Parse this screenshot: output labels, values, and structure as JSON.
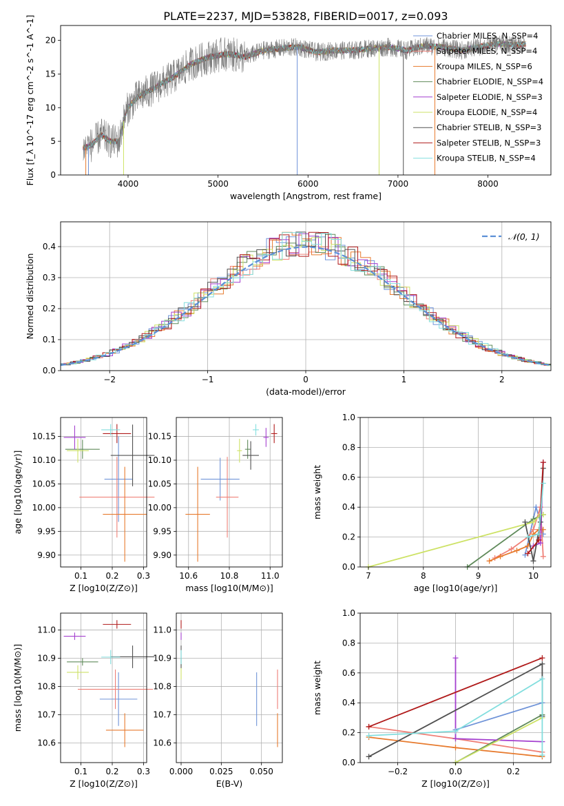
{
  "figure_title": "PLATE=2237, MJD=53828, FIBERID=0017, z=0.093",
  "colors": {
    "chabrier_miles": "#6f93d8",
    "salpeter_miles": "#ef7f76",
    "kroupa_miles": "#e77a2d",
    "chabrier_elodie": "#5f8a5a",
    "salpeter_elodie": "#a43fcf",
    "kroupa_elodie": "#cde265",
    "chabrier_stelib": "#505050",
    "salpeter_stelib": "#b01a1a",
    "kroupa_stelib": "#82dede",
    "normal": "#5b8fd6"
  },
  "chart_data": [
    {
      "id": "spectrum",
      "type": "line",
      "title": "PLATE=2237, MJD=53828, FIBERID=0017, z=0.093",
      "xlabel": "wavelength [Angstrom, rest frame]",
      "ylabel": "Flux [f_λ 10^-17 erg cm^-2 s^-1 A^-1]",
      "xlim": [
        3250,
        8700
      ],
      "ylim": [
        0,
        22.2
      ],
      "xticks": [
        "4000",
        "5000",
        "6000",
        "7000",
        "8000"
      ],
      "yticks": [
        "0",
        "5",
        "10",
        "15",
        "20"
      ],
      "grid": false,
      "legend_position": "upper-right",
      "legend": [
        {
          "label": "Chabrier MILES, N_SSP=4",
          "color": "#6f93d8"
        },
        {
          "label": "Salpeter MILES, N_SSP=4",
          "color": "#ef7f76"
        },
        {
          "label": "Kroupa MILES, N_SSP=6",
          "color": "#e77a2d"
        },
        {
          "label": "Chabrier ELODIE, N_SSP=4",
          "color": "#5f8a5a"
        },
        {
          "label": "Salpeter ELODIE, N_SSP=3",
          "color": "#a43fcf"
        },
        {
          "label": "Kroupa ELODIE, N_SSP=4",
          "color": "#cde265"
        },
        {
          "label": "Chabrier STELIB, N_SSP=3",
          "color": "#505050"
        },
        {
          "label": "Salpeter STELIB, N_SSP=3",
          "color": "#b01a1a"
        },
        {
          "label": "Kroupa STELIB, N_SSP=4",
          "color": "#82dede"
        }
      ],
      "continuum": [
        [
          3520,
          4
        ],
        [
          3600,
          4.5
        ],
        [
          3700,
          6
        ],
        [
          3800,
          5
        ],
        [
          3900,
          5
        ],
        [
          3950,
          8
        ],
        [
          4000,
          10
        ],
        [
          4100,
          11.5
        ],
        [
          4300,
          13
        ],
        [
          4500,
          14.5
        ],
        [
          4700,
          16.5
        ],
        [
          4900,
          17.5
        ],
        [
          5100,
          18
        ],
        [
          5300,
          17.5
        ],
        [
          5500,
          18.5
        ],
        [
          5700,
          18.8
        ],
        [
          5900,
          19
        ],
        [
          6100,
          18.2
        ],
        [
          6300,
          18.5
        ],
        [
          6500,
          18.5
        ],
        [
          6700,
          18.8
        ],
        [
          6900,
          19
        ],
        [
          7100,
          18.5
        ],
        [
          7300,
          19.2
        ],
        [
          7500,
          19
        ],
        [
          7700,
          18.5
        ],
        [
          7900,
          19
        ],
        [
          8100,
          19.5
        ],
        [
          8300,
          19.3
        ],
        [
          8420,
          19.5
        ]
      ],
      "noise_amplitude": 2.0,
      "spectrum_range": [
        3500,
        8420
      ]
    },
    {
      "id": "residuals",
      "type": "histogram",
      "xlabel": "(data-model)/error",
      "ylabel": "Normed distribution",
      "xlim": [
        -2.5,
        2.5
      ],
      "ylim": [
        0,
        0.48
      ],
      "xticks": [
        "−2",
        "−1",
        "0",
        "1",
        "2"
      ],
      "yticks": [
        "0.0",
        "0.1",
        "0.2",
        "0.3",
        "0.4"
      ],
      "grid": true,
      "legend_position": "upper-right",
      "legend": [
        {
          "label": "𝒩(0, 1)",
          "style": "dashed",
          "color": "#5b8fd6"
        }
      ],
      "bin_width": 0.1,
      "curve": "normal(0,1)",
      "series_colors": [
        "#6f93d8",
        "#ef7f76",
        "#e77a2d",
        "#5f8a5a",
        "#a43fcf",
        "#cde265",
        "#505050",
        "#b01a1a",
        "#82dede"
      ]
    },
    {
      "id": "age_vs_Z",
      "type": "errorbar",
      "xlabel": "Z [log10(Z/Z⊙)]",
      "ylabel": "age [log10(age/yr)]",
      "xlim": [
        0.035,
        0.31
      ],
      "ylim": [
        9.875,
        10.19
      ],
      "xticks": [
        "0.1",
        "0.2",
        "0.3"
      ],
      "yticks": [
        "9.90",
        "9.95",
        "10.00",
        "10.05",
        "10.10",
        "10.15"
      ],
      "grid": true,
      "points": [
        {
          "x": 0.22,
          "xerr": 0.045,
          "y": 10.06,
          "yerr": 0.09,
          "color": "#6f93d8"
        },
        {
          "x": 0.215,
          "xerr": 0.12,
          "y": 10.022,
          "yerr": 0.085,
          "color": "#ef7f76"
        },
        {
          "x": 0.24,
          "xerr": 0.07,
          "y": 9.986,
          "yerr": 0.1,
          "color": "#e77a2d"
        },
        {
          "x": 0.105,
          "xerr": 0.055,
          "y": 10.123,
          "yerr": 0.02,
          "color": "#5f8a5a"
        },
        {
          "x": 0.08,
          "xerr": 0.035,
          "y": 10.148,
          "yerr": 0.025,
          "color": "#a43fcf"
        },
        {
          "x": 0.09,
          "xerr": 0.035,
          "y": 10.12,
          "yerr": 0.025,
          "color": "#cde265"
        },
        {
          "x": 0.265,
          "xerr": 0.07,
          "y": 10.11,
          "yerr": 0.065,
          "color": "#505050"
        },
        {
          "x": 0.215,
          "xerr": 0.045,
          "y": 10.156,
          "yerr": 0.02,
          "color": "#b01a1a"
        },
        {
          "x": 0.195,
          "xerr": 0.03,
          "y": 10.164,
          "yerr": 0.012,
          "color": "#82dede"
        }
      ]
    },
    {
      "id": "age_vs_mass",
      "type": "errorbar",
      "xlabel": "mass [log10(M/M⊙)]",
      "ylabel": "",
      "xlim": [
        10.54,
        11.06
      ],
      "ylim": [
        9.875,
        10.19
      ],
      "xticks": [
        "10.6",
        "10.8",
        "11.0"
      ],
      "yticks": [
        "9.90",
        "9.95",
        "10.00",
        "10.05",
        "10.10",
        "10.15"
      ],
      "grid": true,
      "points": [
        {
          "x": 10.755,
          "xerr": 0.095,
          "y": 10.06,
          "yerr": 0.045,
          "color": "#6f93d8"
        },
        {
          "x": 10.79,
          "xerr": 0.055,
          "y": 10.022,
          "yerr": 0.085,
          "color": "#ef7f76"
        },
        {
          "x": 10.645,
          "xerr": 0.06,
          "y": 9.986,
          "yerr": 0.1,
          "color": "#e77a2d"
        },
        {
          "x": 10.89,
          "xerr": 0.013,
          "y": 10.123,
          "yerr": 0.02,
          "color": "#5f8a5a"
        },
        {
          "x": 10.98,
          "xerr": 0.013,
          "y": 10.148,
          "yerr": 0.02,
          "color": "#a43fcf"
        },
        {
          "x": 10.85,
          "xerr": 0.012,
          "y": 10.12,
          "yerr": 0.025,
          "color": "#cde265"
        },
        {
          "x": 10.905,
          "xerr": 0.04,
          "y": 10.11,
          "yerr": 0.03,
          "color": "#505050"
        },
        {
          "x": 11.02,
          "xerr": 0.015,
          "y": 10.156,
          "yerr": 0.02,
          "color": "#b01a1a"
        },
        {
          "x": 10.93,
          "xerr": 0.015,
          "y": 10.164,
          "yerr": 0.012,
          "color": "#82dede"
        }
      ]
    },
    {
      "id": "mass_weight_vs_age",
      "type": "line",
      "xlabel": "age [log10(age/yr)]",
      "ylabel": "mass weight",
      "xlim": [
        6.85,
        10.32
      ],
      "ylim": [
        0,
        1.0
      ],
      "xticks": [
        "7",
        "8",
        "9",
        "10"
      ],
      "yticks": [
        "0.0",
        "0.2",
        "0.4",
        "0.6",
        "0.8",
        "1.0"
      ],
      "grid": true,
      "series": [
        {
          "color": "#6f93d8",
          "x": [
            9.85,
            10.05,
            10.13,
            10.18
          ],
          "y": [
            0.08,
            0.4,
            0.3,
            0.22
          ]
        },
        {
          "color": "#ef7f76",
          "x": [
            9.3,
            9.6,
            9.9,
            10.0,
            10.13,
            10.18
          ],
          "y": [
            0.06,
            0.12,
            0.2,
            0.25,
            0.4,
            0.07
          ]
        },
        {
          "color": "#e77a2d",
          "x": [
            9.2,
            9.4,
            9.7,
            9.9,
            10.0,
            10.1,
            10.18
          ],
          "y": [
            0.04,
            0.07,
            0.11,
            0.14,
            0.22,
            0.25,
            0.25
          ]
        },
        {
          "color": "#5f8a5a",
          "x": [
            8.8,
            10.0,
            10.18
          ],
          "y": [
            0.0,
            0.32,
            0.35
          ]
        },
        {
          "color": "#a43fcf",
          "x": [
            10.0,
            10.13,
            10.18
          ],
          "y": [
            0.14,
            0.16,
            0.7
          ]
        },
        {
          "color": "#cde265",
          "x": [
            7.0,
            10.0,
            10.13,
            10.18
          ],
          "y": [
            0.0,
            0.3,
            0.35,
            0.35
          ]
        },
        {
          "color": "#505050",
          "x": [
            9.85,
            10.0,
            10.13,
            10.18
          ],
          "y": [
            0.3,
            0.04,
            0.3,
            0.66
          ]
        },
        {
          "color": "#b01a1a",
          "x": [
            9.9,
            10.1,
            10.18
          ],
          "y": [
            0.09,
            0.18,
            0.7
          ]
        },
        {
          "color": "#82dede",
          "x": [
            9.9,
            10.1,
            10.18
          ],
          "y": [
            0.2,
            0.22,
            0.56
          ]
        }
      ]
    },
    {
      "id": "mass_vs_Z",
      "type": "errorbar",
      "xlabel": "Z [log10(Z/Z⊙)]",
      "ylabel": "mass [log10(M/M⊙)]",
      "xlim": [
        0.035,
        0.31
      ],
      "ylim": [
        10.53,
        11.06
      ],
      "xticks": [
        "0.1",
        "0.2",
        "0.3"
      ],
      "yticks": [
        "10.6",
        "10.7",
        "10.8",
        "10.9",
        "11.0"
      ],
      "grid": true,
      "points": [
        {
          "x": 0.22,
          "xerr": 0.06,
          "y": 10.755,
          "yerr": 0.095,
          "color": "#6f93d8"
        },
        {
          "x": 0.21,
          "xerr": 0.12,
          "y": 10.79,
          "yerr": 0.07,
          "color": "#ef7f76"
        },
        {
          "x": 0.24,
          "xerr": 0.06,
          "y": 10.645,
          "yerr": 0.06,
          "color": "#e77a2d"
        },
        {
          "x": 0.105,
          "xerr": 0.05,
          "y": 10.887,
          "yerr": 0.013,
          "color": "#5f8a5a"
        },
        {
          "x": 0.08,
          "xerr": 0.035,
          "y": 10.978,
          "yerr": 0.013,
          "color": "#a43fcf"
        },
        {
          "x": 0.09,
          "xerr": 0.035,
          "y": 10.85,
          "yerr": 0.025,
          "color": "#cde265"
        },
        {
          "x": 0.265,
          "xerr": 0.07,
          "y": 10.905,
          "yerr": 0.04,
          "color": "#505050"
        },
        {
          "x": 0.215,
          "xerr": 0.045,
          "y": 11.02,
          "yerr": 0.015,
          "color": "#b01a1a"
        },
        {
          "x": 0.195,
          "xerr": 0.03,
          "y": 10.904,
          "yerr": 0.025,
          "color": "#82dede"
        }
      ]
    },
    {
      "id": "mass_vs_ebv",
      "type": "errorbar",
      "xlabel": "E(B-V)",
      "ylabel": "",
      "xlim": [
        -0.003,
        0.063
      ],
      "ylim": [
        10.53,
        11.06
      ],
      "xticks": [
        "0.000",
        "0.025",
        "0.050"
      ],
      "yticks": [
        "10.6",
        "10.7",
        "10.8",
        "10.9",
        "11.0"
      ],
      "grid": true,
      "points": [
        {
          "x": 0.047,
          "xerr": 0,
          "y": 10.755,
          "yerr": 0.095,
          "color": "#6f93d8"
        },
        {
          "x": 0.06,
          "xerr": 0,
          "y": 10.79,
          "yerr": 0.07,
          "color": "#ef7f76"
        },
        {
          "x": 0.06,
          "xerr": 0,
          "y": 10.645,
          "yerr": 0.06,
          "color": "#e77a2d"
        },
        {
          "x": 0.0,
          "xerr": 0,
          "y": 10.887,
          "yerr": 0.013,
          "color": "#5f8a5a"
        },
        {
          "x": 0.0,
          "xerr": 0,
          "y": 10.978,
          "yerr": 0.013,
          "color": "#a43fcf"
        },
        {
          "x": 0.0,
          "xerr": 0,
          "y": 10.85,
          "yerr": 0.025,
          "color": "#cde265"
        },
        {
          "x": 0.0,
          "xerr": 0,
          "y": 10.905,
          "yerr": 0.04,
          "color": "#505050"
        },
        {
          "x": 0.0,
          "xerr": 0,
          "y": 11.02,
          "yerr": 0.015,
          "color": "#b01a1a"
        },
        {
          "x": 0.0,
          "xerr": 0,
          "y": 10.904,
          "yerr": 0.025,
          "color": "#82dede"
        }
      ]
    },
    {
      "id": "mass_weight_vs_Z",
      "type": "line",
      "xlabel": "Z [log10(Z/Z⊙)]",
      "ylabel": "mass weight",
      "xlim": [
        -0.33,
        0.33
      ],
      "ylim": [
        0,
        1.0
      ],
      "xticks": [
        "−0.2",
        "0.0",
        "0.2"
      ],
      "yticks": [
        "0.0",
        "0.2",
        "0.4",
        "0.6",
        "0.8",
        "1.0"
      ],
      "grid": true,
      "series": [
        {
          "color": "#6f93d8",
          "x": [
            0.0,
            0.3
          ],
          "y": [
            0.22,
            0.4
          ]
        },
        {
          "color": "#ef7f76",
          "x": [
            -0.3,
            0.0,
            0.3
          ],
          "y": [
            0.24,
            0.16,
            0.07
          ]
        },
        {
          "color": "#e77a2d",
          "x": [
            -0.3,
            0.0,
            0.3
          ],
          "y": [
            0.17,
            0.1,
            0.04
          ]
        },
        {
          "color": "#5f8a5a",
          "x": [
            0.0,
            0.3
          ],
          "y": [
            0.0,
            0.32
          ]
        },
        {
          "color": "#a43fcf",
          "x": [
            0.0,
            0.0,
            0.3
          ],
          "y": [
            0.7,
            0.16,
            0.14
          ]
        },
        {
          "color": "#cde265",
          "x": [
            0.0,
            0.3
          ],
          "y": [
            0.0,
            0.3
          ]
        },
        {
          "color": "#505050",
          "x": [
            -0.3,
            0.3,
            0.3
          ],
          "y": [
            0.04,
            0.66,
            0.31
          ]
        },
        {
          "color": "#b01a1a",
          "x": [
            -0.3,
            0.3
          ],
          "y": [
            0.24,
            0.7
          ]
        },
        {
          "color": "#82dede",
          "x": [
            -0.3,
            0.0,
            0.3,
            0.3
          ],
          "y": [
            0.18,
            0.21,
            0.56,
            0.05
          ]
        }
      ]
    }
  ]
}
